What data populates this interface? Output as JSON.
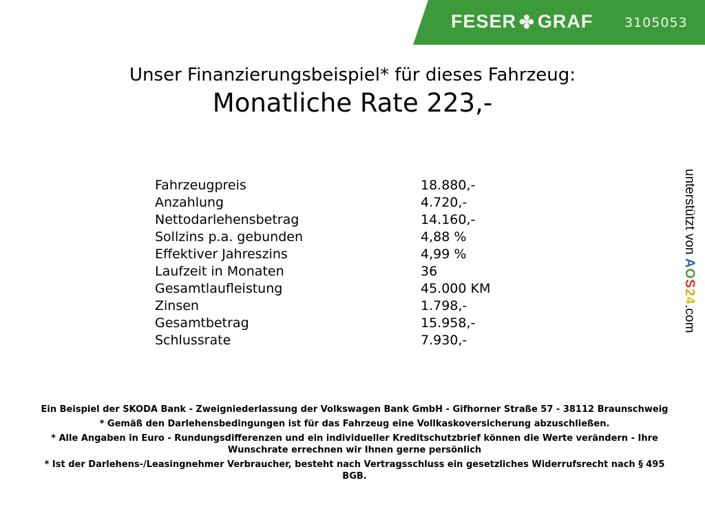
{
  "header": {
    "brand": "FESER",
    "brand2": "GRAF",
    "brand_icon": "clover-icon",
    "code": "3105053",
    "color": "#3d9a3a"
  },
  "title": {
    "line1": "Unser Finanzierungsbeispiel* für dieses Fahrzeug:",
    "line2": "Monatliche Rate 223,-"
  },
  "rows": [
    {
      "label": "Fahrzeugpreis",
      "value": "18.880,-"
    },
    {
      "label": "Anzahlung",
      "value": "4.720,-"
    },
    {
      "label": "Nettodarlehensbetrag",
      "value": "14.160,-"
    },
    {
      "label": "Sollzins p.a. gebunden",
      "value": "4,88 %"
    },
    {
      "label": "Effektiver Jahreszins",
      "value": "4,99 %"
    },
    {
      "label": "Laufzeit in Monaten",
      "value": "36"
    },
    {
      "label": "Gesamtlaufleistung",
      "value": "45.000 KM"
    },
    {
      "label": "Zinsen",
      "value": "1.798,-"
    },
    {
      "label": "Gesamtbetrag",
      "value": "15.958,-"
    },
    {
      "label": "Schlussrate",
      "value": "7.930,-"
    }
  ],
  "side": {
    "text": "unterstützt von",
    "logo": "AOS24",
    "suffix": ".com"
  },
  "footer": [
    "Ein Beispiel der SKODA Bank - Zweigniederlassung der Volkswagen Bank GmbH - Gifhorner Straße 57 - 38112 Braunschweig",
    "* Gemäß den Darlehensbedingungen ist für das Fahrzeug eine Vollkaskoversicherung abzuschließen.",
    "* Alle Angaben in Euro - Rundungsdifferenzen und ein individueller Kreditschutzbrief können die Werte verändern - Ihre Wunschrate errechnen wir Ihnen gerne persönlich",
    "* Ist der Darlehens-/Leasingnehmer Verbraucher, besteht nach Vertragsschluss ein gesetzliches Widerrufsrecht nach § 495 BGB."
  ]
}
